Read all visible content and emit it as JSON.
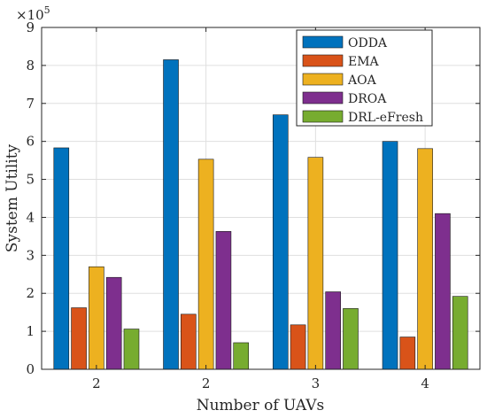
{
  "chart_data": {
    "type": "bar",
    "xlabel": "Number of UAVs",
    "ylabel": "System Utility",
    "y_multiplier_label": "×10",
    "y_multiplier_exponent": "5",
    "categories": [
      "2",
      "2",
      "3",
      "4"
    ],
    "ylim": [
      0,
      9
    ],
    "yticks": [
      "0",
      "1",
      "2",
      "3",
      "4",
      "5",
      "6",
      "7",
      "8",
      "9"
    ],
    "grid": true,
    "legend_placement": "top-right",
    "series": [
      {
        "name": "ODDA",
        "color": "#0072BD",
        "values": [
          5.83,
          8.15,
          6.7,
          6.0
        ]
      },
      {
        "name": "EMA",
        "color": "#D95319",
        "values": [
          1.62,
          1.45,
          1.17,
          0.85
        ]
      },
      {
        "name": "AOA",
        "color": "#EDB120",
        "values": [
          2.7,
          5.53,
          5.58,
          5.81
        ]
      },
      {
        "name": "DROA",
        "color": "#7E2F8E",
        "values": [
          2.42,
          3.63,
          2.04,
          4.1
        ]
      },
      {
        "name": "DRL-eFresh",
        "color": "#77AC30",
        "values": [
          1.06,
          0.7,
          1.6,
          1.92
        ]
      }
    ]
  }
}
